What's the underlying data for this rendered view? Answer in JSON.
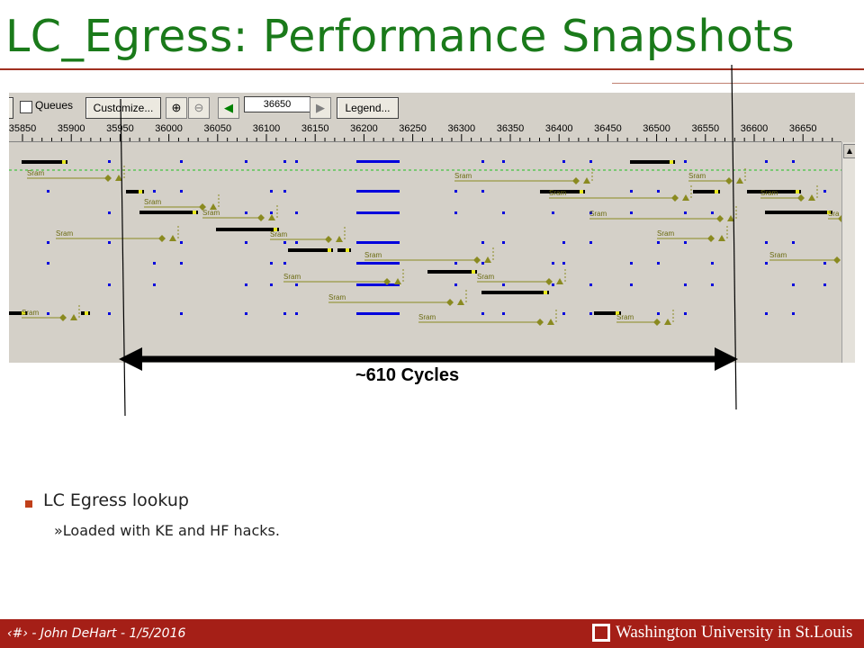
{
  "slide": {
    "title": "LC_Egress: Performance Snapshots",
    "cycles_label": "~610 Cycles",
    "bullet": "LC Egress lookup",
    "sub_bullet_marker": "»",
    "sub_bullet": "Loaded with KE and HF hacks."
  },
  "toolbar": {
    "queues_label": "Queues",
    "customize_label": "Customize...",
    "zoom_value": "36650",
    "legend_label": "Legend...",
    "zoom_in_icon": "zoom-in-icon",
    "zoom_out_icon": "zoom-out-icon",
    "back_icon": "arrow-left-icon",
    "forward_icon": "arrow-right-icon"
  },
  "ruler": {
    "ticks": [
      "35850",
      "35900",
      "35950",
      "36000",
      "36050",
      "36100",
      "36150",
      "36200",
      "36250",
      "36300",
      "36350",
      "36400",
      "36450",
      "36500",
      "36550",
      "36600",
      "36650"
    ]
  },
  "timeline": {
    "sram_label": "Sram"
  },
  "footer": {
    "page": "‹#›",
    "sep": "-",
    "author": "John DeHart",
    "date": "1/5/2016",
    "university": "Washington University in St.Louis"
  },
  "colors": {
    "title": "#1a7a1a",
    "footer_bg": "#a51f17",
    "rule": "#a03020",
    "track_olive": "#8a8a20",
    "active_blue": "#0000dd",
    "thread_black": "#000000",
    "yellow": "#e8e820"
  }
}
